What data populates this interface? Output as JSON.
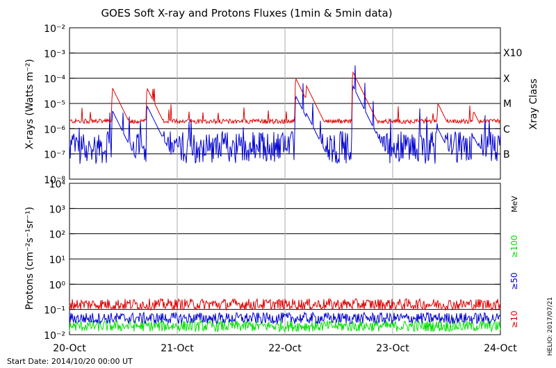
{
  "title": "GOES Soft X-ray and Protons Fluxes   (1min & 5min data)",
  "footer_start": "Start Date: 2014/10/20 00:00 UT",
  "footer_credit": "HELIO: 2017/07/21",
  "chart_data": [
    {
      "type": "line",
      "panel": "xray",
      "ylabel": "X-rays (Watts m⁻²)",
      "yscale": "log",
      "ylim": [
        1e-08,
        0.01
      ],
      "yticks": [
        "10⁻²",
        "10⁻³",
        "10⁻⁴",
        "10⁻⁵",
        "10⁻⁶",
        "10⁻⁷",
        "10⁻⁸"
      ],
      "xticks": [
        "20-Oct",
        "21-Oct",
        "22-Oct",
        "23-Oct",
        "24-Oct"
      ],
      "right_axis_label": "Xray Class",
      "class_labels": [
        "X10",
        "X",
        "M",
        "C",
        "B"
      ],
      "colors": {
        "long": "#e00000",
        "short": "#0000d0"
      },
      "flares": [
        {
          "day": 0.4,
          "long": 4e-05,
          "short": 5e-06
        },
        {
          "day": 0.72,
          "long": 4e-05,
          "short": 8e-06
        },
        {
          "day": 2.1,
          "long": 0.0001,
          "short": 2e-05
        },
        {
          "day": 2.2,
          "long": 5e-05,
          "short": 4e-06
        },
        {
          "day": 2.63,
          "long": 0.00018,
          "short": 5e-05
        },
        {
          "day": 3.42,
          "long": 1e-05,
          "short": 1e-06
        },
        {
          "day": 3.75,
          "long": 5e-06,
          "short": 5e-07
        }
      ]
    },
    {
      "type": "line",
      "panel": "protons",
      "ylabel": "Protons (cm⁻²s⁻¹sr⁻¹)",
      "yscale": "log",
      "ylim": [
        0.01,
        10000
      ],
      "yticks": [
        "10⁴",
        "10³",
        "10²",
        "10¹",
        "10⁰",
        "10⁻¹",
        "10⁻²"
      ],
      "xticks": [
        "20-Oct",
        "21-Oct",
        "22-Oct",
        "23-Oct",
        "24-Oct"
      ],
      "unit_label": "MeV",
      "series": [
        {
          "name": "≥10",
          "color": "#e00000",
          "level": 0.16
        },
        {
          "name": "≥50",
          "color": "#0000d0",
          "level": 0.045
        },
        {
          "name": "≥100",
          "color": "#00e000",
          "level": 0.022
        }
      ],
      "threshold": 10
    }
  ]
}
